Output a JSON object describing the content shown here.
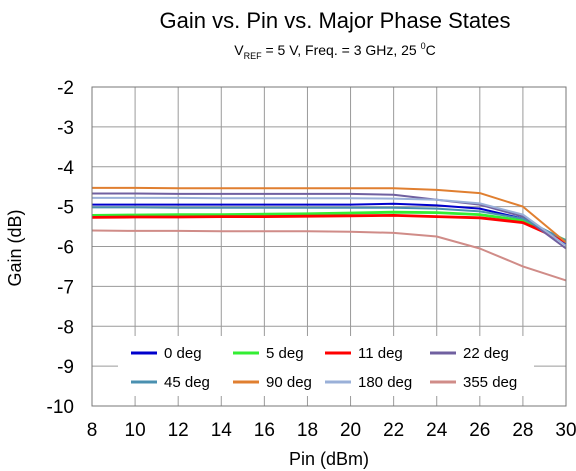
{
  "chart_data": {
    "type": "line",
    "title": "Gain vs. Pin vs. Major Phase States",
    "subtitle": {
      "prefix": "V",
      "subscript": "REF",
      "middle": " = 5 V, Freq. = 3 GHz, 25 ",
      "superscript": "0",
      "suffix": "C"
    },
    "xlabel": "Pin (dBm)",
    "ylabel": "Gain (dB)",
    "xlim": [
      8,
      30
    ],
    "ylim": [
      -10,
      -2
    ],
    "x_ticks": [
      "8",
      "10",
      "12",
      "14",
      "16",
      "18",
      "20",
      "22",
      "24",
      "26",
      "28",
      "30"
    ],
    "y_ticks": [
      "-2",
      "-3",
      "-4",
      "-5",
      "-6",
      "-7",
      "-8",
      "-9",
      "-10"
    ],
    "grid": true,
    "legend_position": "bottom",
    "x": [
      8,
      10,
      12,
      14,
      16,
      18,
      20,
      22,
      24,
      26,
      28,
      30
    ],
    "series": [
      {
        "name": "0 deg",
        "color": "#0000cc",
        "values": [
          -4.95,
          -4.95,
          -4.95,
          -4.95,
          -4.95,
          -4.95,
          -4.95,
          -4.93,
          -4.97,
          -5.05,
          -5.3,
          -5.95
        ]
      },
      {
        "name": "5 deg",
        "color": "#33ee33",
        "values": [
          -5.22,
          -5.21,
          -5.2,
          -5.2,
          -5.19,
          -5.18,
          -5.16,
          -5.14,
          -5.15,
          -5.2,
          -5.35,
          -5.85
        ]
      },
      {
        "name": "11 deg",
        "color": "#ff0000",
        "values": [
          -5.27,
          -5.26,
          -5.26,
          -5.25,
          -5.25,
          -5.24,
          -5.23,
          -5.22,
          -5.25,
          -5.28,
          -5.4,
          -5.88
        ]
      },
      {
        "name": "22 deg",
        "color": "#7060a0",
        "values": [
          -4.67,
          -4.67,
          -4.68,
          -4.68,
          -4.68,
          -4.68,
          -4.68,
          -4.7,
          -4.83,
          -4.95,
          -5.25,
          -6.05
        ]
      },
      {
        "name": "45 deg",
        "color": "#4a90b0",
        "values": [
          -5.02,
          -5.02,
          -5.03,
          -5.03,
          -5.03,
          -5.03,
          -5.03,
          -5.03,
          -5.05,
          -5.12,
          -5.3,
          -5.85
        ]
      },
      {
        "name": "90 deg",
        "color": "#e07f30",
        "values": [
          -4.53,
          -4.53,
          -4.54,
          -4.54,
          -4.54,
          -4.54,
          -4.54,
          -4.54,
          -4.58,
          -4.66,
          -5.0,
          -5.9
        ]
      },
      {
        "name": "180 deg",
        "color": "#9ab0d8",
        "values": [
          -4.78,
          -4.78,
          -4.78,
          -4.79,
          -4.79,
          -4.79,
          -4.79,
          -4.8,
          -4.83,
          -4.92,
          -5.2,
          -5.98
        ]
      },
      {
        "name": "355 deg",
        "color": "#d08c88",
        "values": [
          -5.6,
          -5.61,
          -5.61,
          -5.62,
          -5.62,
          -5.62,
          -5.63,
          -5.66,
          -5.75,
          -6.05,
          -6.5,
          -6.85
        ]
      }
    ]
  }
}
